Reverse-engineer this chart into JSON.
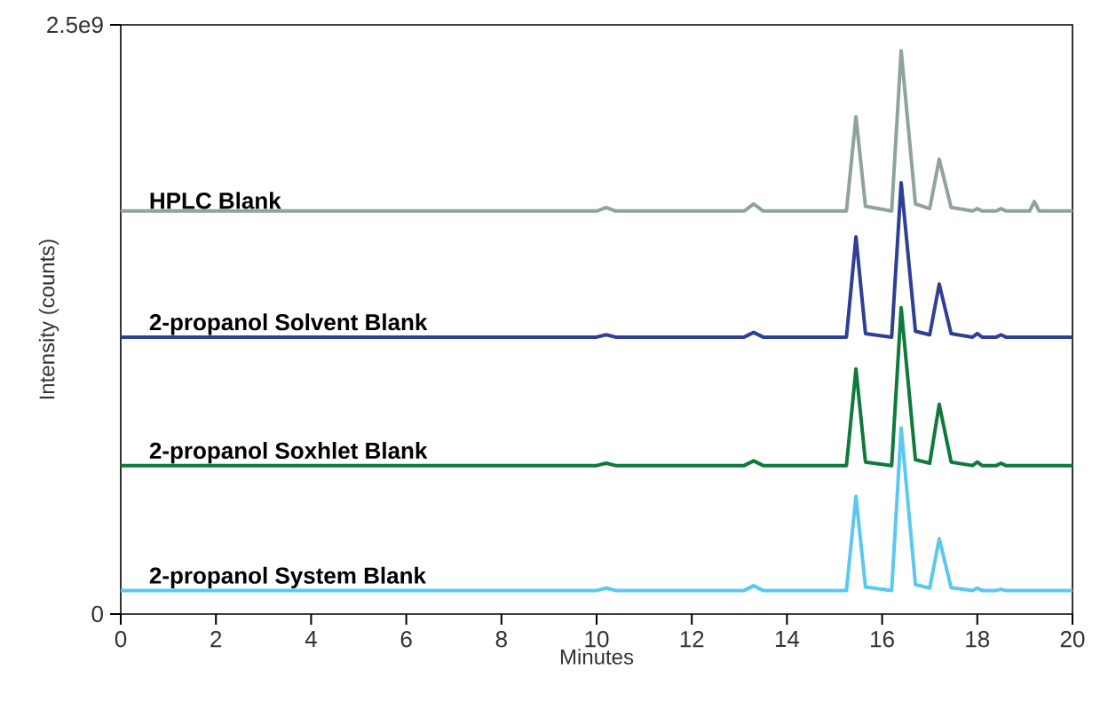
{
  "chart_data": {
    "type": "line",
    "xlabel": "Minutes",
    "ylabel": "Intensity (counts)",
    "xlim": [
      0,
      20
    ],
    "ylim": [
      0,
      2500000000
    ],
    "xticks": [
      0,
      2,
      4,
      6,
      8,
      10,
      12,
      14,
      16,
      18,
      20
    ],
    "yticks": [
      0,
      {
        "value": 2500000000,
        "label": "2.5e9"
      }
    ],
    "x": [
      0,
      10.0,
      10.2,
      10.4,
      13.1,
      13.3,
      13.5,
      15.25,
      15.45,
      15.65,
      16.2,
      16.4,
      16.7,
      17.0,
      17.2,
      17.45,
      17.9,
      18.0,
      18.1,
      18.4,
      18.5,
      18.6,
      19.1,
      19.2,
      19.3,
      20
    ],
    "series": [
      {
        "name": "HPLC Blank",
        "color": "#8fa39b",
        "values": [
          1710000000,
          1710000000,
          1725000000,
          1710000000,
          1710000000,
          1740000000,
          1710000000,
          1710000000,
          2110000000,
          1730000000,
          1710000000,
          2390000000,
          1740000000,
          1720000000,
          1930000000,
          1725000000,
          1710000000,
          1720000000,
          1710000000,
          1710000000,
          1720000000,
          1710000000,
          1710000000,
          1750000000,
          1710000000,
          1710000000
        ]
      },
      {
        "name": "2-propanol Solvent Blank",
        "color": "#2e3f95",
        "values": [
          1175000000,
          1175000000,
          1185000000,
          1175000000,
          1175000000,
          1195000000,
          1175000000,
          1175000000,
          1600000000,
          1190000000,
          1175000000,
          1830000000,
          1200000000,
          1185000000,
          1400000000,
          1190000000,
          1175000000,
          1190000000,
          1175000000,
          1175000000,
          1185000000,
          1175000000,
          1175000000,
          1175000000,
          1175000000,
          1175000000
        ]
      },
      {
        "name": "2-propanol Soxhlet Blank",
        "color": "#0f7a3c",
        "values": [
          630000000,
          630000000,
          640000000,
          630000000,
          630000000,
          650000000,
          630000000,
          630000000,
          1040000000,
          645000000,
          630000000,
          1300000000,
          655000000,
          640000000,
          890000000,
          645000000,
          630000000,
          645000000,
          630000000,
          630000000,
          640000000,
          630000000,
          630000000,
          630000000,
          630000000,
          630000000
        ]
      },
      {
        "name": "2-propanol System Blank",
        "color": "#5bc8f0",
        "values": [
          100000000,
          100000000,
          110000000,
          100000000,
          100000000,
          120000000,
          100000000,
          100000000,
          500000000,
          115000000,
          100000000,
          790000000,
          125000000,
          110000000,
          320000000,
          112000000,
          100000000,
          110000000,
          100000000,
          100000000,
          105000000,
          100000000,
          100000000,
          100000000,
          100000000,
          100000000
        ]
      }
    ],
    "legend": false,
    "grid": false,
    "marker": "none",
    "line_style": "solid"
  }
}
